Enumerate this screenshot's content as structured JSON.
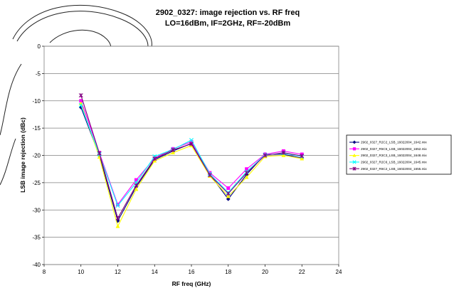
{
  "chart_data": {
    "type": "line",
    "title": "2902_0327: image rejection vs. RF freq",
    "subtitle": "LO=16dBm, IF=2GHz, RF=-20dBm",
    "xlabel": "RF freq (GHz)",
    "ylabel": "LSB image rejection (dBc)",
    "xlim": [
      8,
      24
    ],
    "ylim": [
      -40,
      0
    ],
    "xticks": [
      8,
      10,
      12,
      14,
      16,
      18,
      20,
      22,
      24
    ],
    "yticks": [
      0,
      -5,
      -10,
      -15,
      -20,
      -25,
      -30,
      -35,
      -40
    ],
    "grid": true,
    "legend_position": "right",
    "x": [
      10,
      11,
      12,
      13,
      14,
      15,
      16,
      17,
      18,
      19,
      20,
      21,
      22
    ],
    "series": [
      {
        "name": "2902_0327_R2C2_LSB_16022004_1642.mix",
        "color": "#000080",
        "marker": "diamond",
        "values": [
          -11.2,
          -20.0,
          -32.0,
          -25.8,
          -20.8,
          -19.2,
          -17.8,
          -23.5,
          -28.0,
          -23.5,
          -19.8,
          -19.8,
          -20.5
        ]
      },
      {
        "name": "2902_0327_R5C5_LSB_16022004_1652.mix",
        "color": "#ff00ff",
        "marker": "square",
        "values": [
          -10.0,
          -19.5,
          -29.0,
          -24.5,
          -20.5,
          -18.8,
          -17.5,
          -23.2,
          -26.0,
          -22.5,
          -19.8,
          -19.2,
          -19.8
        ]
      },
      {
        "name": "2902_0327_R3C3_LSB_16022004_1648.mix",
        "color": "#ffff00",
        "marker": "triangle",
        "values": [
          -10.5,
          -20.3,
          -33.0,
          -26.2,
          -21.0,
          -19.5,
          -18.2,
          -23.8,
          -27.5,
          -24.0,
          -20.2,
          -20.0,
          -20.6
        ]
      },
      {
        "name": "2902_0327_R2C6_LSB_16022004_1645.mix",
        "color": "#00ffff",
        "marker": "x",
        "values": [
          -10.8,
          -19.8,
          -29.2,
          -25.0,
          -20.2,
          -18.9,
          -17.2,
          -23.4,
          -26.8,
          -23.0,
          -19.9,
          -19.6,
          -20.2
        ]
      },
      {
        "name": "2902_0327_R6C2_LSB_16022004_1655.mix",
        "color": "#800080",
        "marker": "asterisk",
        "values": [
          -9.0,
          -19.6,
          -31.5,
          -25.5,
          -20.6,
          -19.0,
          -17.9,
          -23.6,
          -27.0,
          -23.2,
          -20.0,
          -19.5,
          -20.1
        ]
      }
    ]
  }
}
